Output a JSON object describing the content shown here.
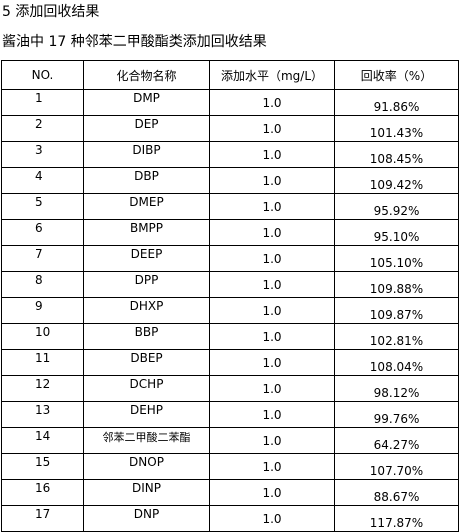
{
  "section_heading": "5  添加回收结果",
  "table_caption": "酱油中 17 种邻苯二甲酸酯类添加回收结果",
  "columns": {
    "no": "NO.",
    "compound": "化合物名称",
    "level": "添加水平（mg/L）",
    "recovery": "回收率（%）"
  },
  "rows": [
    {
      "no": "1",
      "compound": "DMP",
      "level": "1.0",
      "recovery": "91.86%"
    },
    {
      "no": "2",
      "compound": "DEP",
      "level": "1.0",
      "recovery": "101.43%"
    },
    {
      "no": "3",
      "compound": "DIBP",
      "level": "1.0",
      "recovery": "108.45%"
    },
    {
      "no": "4",
      "compound": "DBP",
      "level": "1.0",
      "recovery": "109.42%"
    },
    {
      "no": "5",
      "compound": "DMEP",
      "level": "1.0",
      "recovery": "95.92%"
    },
    {
      "no": "6",
      "compound": "BMPP",
      "level": "1.0",
      "recovery": "95.10%"
    },
    {
      "no": "7",
      "compound": "DEEP",
      "level": "1.0",
      "recovery": "105.10%"
    },
    {
      "no": "8",
      "compound": "DPP",
      "level": "1.0",
      "recovery": "109.88%"
    },
    {
      "no": "9",
      "compound": "DHXP",
      "level": "1.0",
      "recovery": "109.87%"
    },
    {
      "no": "10",
      "compound": "BBP",
      "level": "1.0",
      "recovery": "102.81%"
    },
    {
      "no": "11",
      "compound": "DBEP",
      "level": "1.0",
      "recovery": "108.04%"
    },
    {
      "no": "12",
      "compound": "DCHP",
      "level": "1.0",
      "recovery": "98.12%"
    },
    {
      "no": "13",
      "compound": "DEHP",
      "level": "1.0",
      "recovery": "99.76%"
    },
    {
      "no": "14",
      "compound": "邻苯二甲酸二苯酯",
      "level": "1.0",
      "recovery": "64.27%"
    },
    {
      "no": "15",
      "compound": "DNOP",
      "level": "1.0",
      "recovery": "107.70%"
    },
    {
      "no": "16",
      "compound": "DINP",
      "level": "1.0",
      "recovery": "88.67%"
    },
    {
      "no": "17",
      "compound": "DNP",
      "level": "1.0",
      "recovery": "117.87%"
    }
  ]
}
